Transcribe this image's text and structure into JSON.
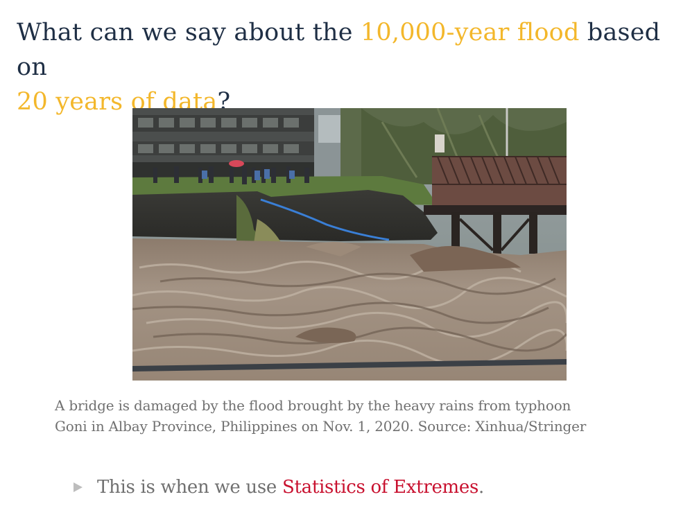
{
  "title": {
    "part1": "What can we say about the ",
    "highlight1": "10,000-year flood",
    "part2": " based on",
    "highlight2": "20 years of data",
    "part3": "?",
    "highlight_color": "#f3b72b",
    "text_color": "#1f2f45"
  },
  "photo": {
    "description_icon": "flood-photo"
  },
  "caption": {
    "line1": "A bridge is damaged by the flood brought by the heavy rains from typhoon",
    "line2": "Goni in Albay Province, Philippines on Nov. 1, 2020. Source: Xinhua/Stringer"
  },
  "bullet": {
    "text": "This is when we use ",
    "accent": "Statistics of Extremes",
    "end": ".",
    "accent_color": "#c8102e"
  }
}
